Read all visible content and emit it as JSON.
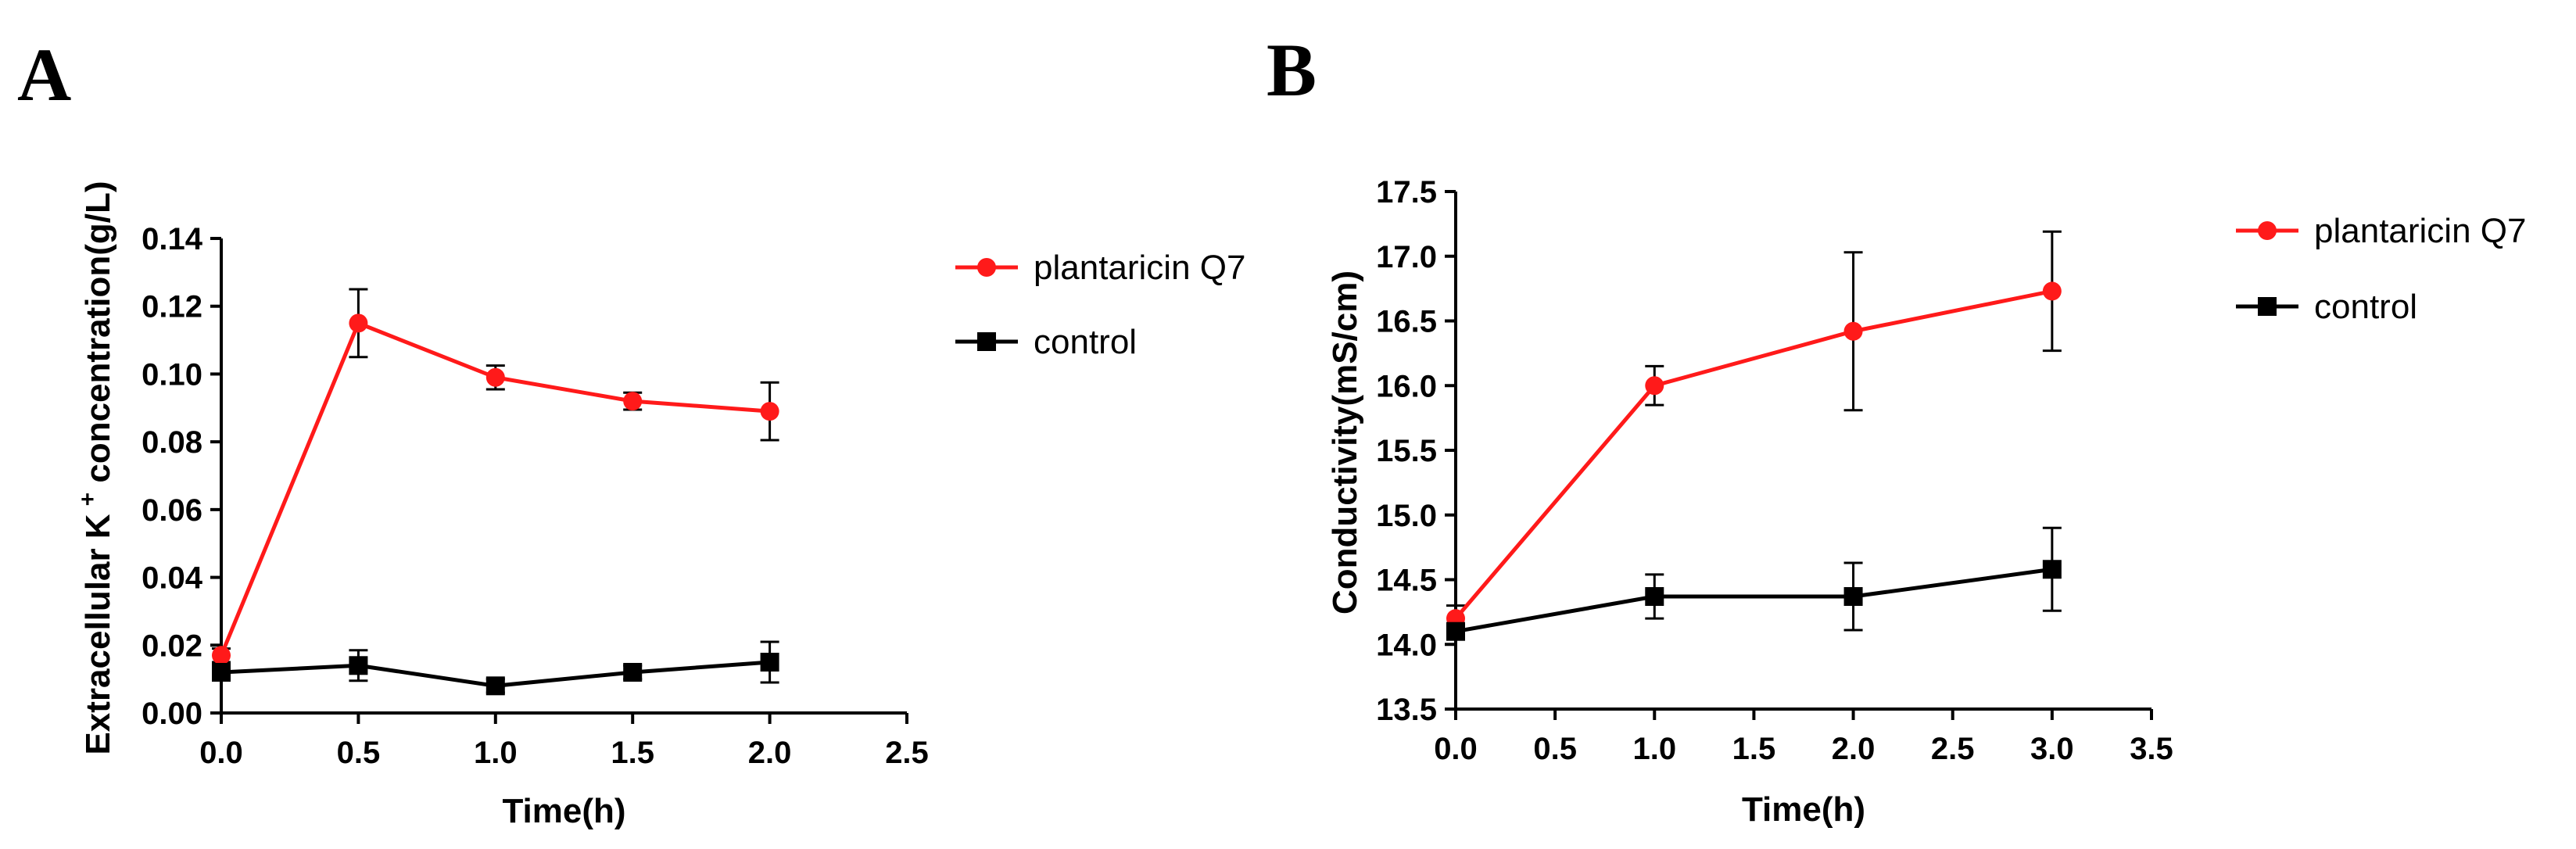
{
  "chart_data": [
    {
      "panel": "A",
      "type": "line",
      "xlabel": "Time(h)",
      "ylabel_main": "Extracellular K",
      "ylabel_sup": "+",
      "ylabel_tail": " concentration(g/L)",
      "xlim": [
        0,
        2.5
      ],
      "ylim": [
        0,
        0.14
      ],
      "xticks": [
        "0.0",
        "0.5",
        "1.0",
        "1.5",
        "2.0",
        "2.5"
      ],
      "yticks": [
        "0.00",
        "0.02",
        "0.04",
        "0.06",
        "0.08",
        "0.10",
        "0.12",
        "0.14"
      ],
      "x": [
        0,
        0.5,
        1.0,
        1.5,
        2.0
      ],
      "series": [
        {
          "name": "plantaricin Q7",
          "color": "#ff1a1a",
          "marker": "circle",
          "values": [
            0.017,
            0.115,
            0.099,
            0.092,
            0.089
          ],
          "errors": [
            0.002,
            0.01,
            0.0035,
            0.0025,
            0.0085
          ]
        },
        {
          "name": "control",
          "color": "#000000",
          "marker": "square",
          "values": [
            0.012,
            0.014,
            0.008,
            0.012,
            0.015
          ],
          "errors": [
            0.0015,
            0.0045,
            0.002,
            0.002,
            0.006
          ]
        }
      ]
    },
    {
      "panel": "B",
      "type": "line",
      "xlabel": "Time(h)",
      "ylabel_main": "Conductivity(mS/cm)",
      "ylabel_sup": "",
      "ylabel_tail": "",
      "xlim": [
        0,
        3.5
      ],
      "ylim": [
        13.5,
        17.5
      ],
      "xticks": [
        "0.0",
        "0.5",
        "1.0",
        "1.5",
        "2.0",
        "2.5",
        "3.0",
        "3.5"
      ],
      "yticks": [
        "13.5",
        "14.0",
        "14.5",
        "15.0",
        "15.5",
        "16.0",
        "16.5",
        "17.0",
        "17.5"
      ],
      "x": [
        0,
        1,
        2,
        3
      ],
      "series": [
        {
          "name": "plantaricin Q7",
          "color": "#ff1a1a",
          "marker": "circle",
          "values": [
            14.2,
            16.0,
            16.42,
            16.73
          ],
          "errors": [
            0.1,
            0.15,
            0.61,
            0.46
          ]
        },
        {
          "name": "control",
          "color": "#000000",
          "marker": "square",
          "values": [
            14.1,
            14.37,
            14.37,
            14.58
          ],
          "errors": [
            0.06,
            0.17,
            0.26,
            0.32
          ]
        }
      ]
    }
  ]
}
